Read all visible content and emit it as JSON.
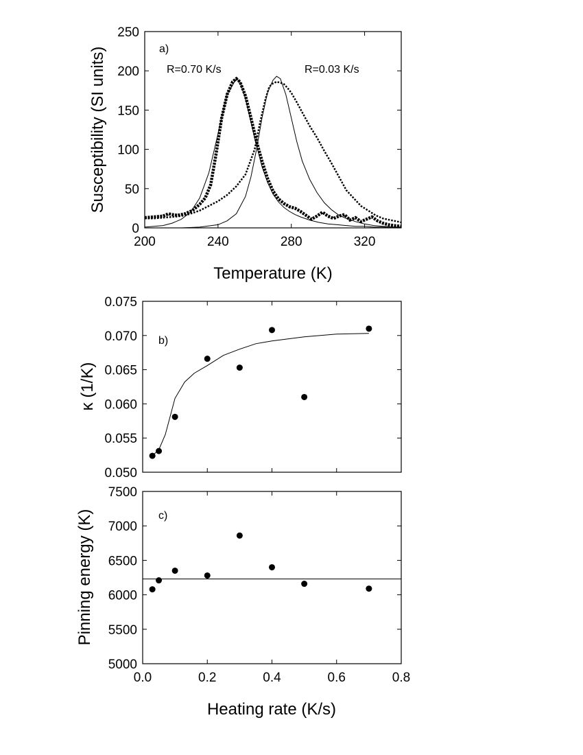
{
  "chart_data": [
    {
      "panel": "a)",
      "type": "scatter",
      "xlabel": "Temperature (K)",
      "ylabel": "Susceptibility (SI units)",
      "xlim": [
        200,
        340
      ],
      "ylim": [
        0,
        250
      ],
      "xticks": [
        200,
        240,
        280,
        320
      ],
      "yticks": [
        0,
        50,
        100,
        150,
        200,
        250
      ],
      "annotations": [
        "R=0.70 K/s",
        "R=0.03 K/s"
      ],
      "series": [
        {
          "name": "R=0.70 K/s",
          "style": "thick-dotted",
          "x": [
            200,
            205,
            210,
            213,
            215,
            218,
            222,
            226,
            230,
            233,
            236,
            239,
            242,
            245,
            248,
            250,
            252,
            255,
            258,
            261,
            264,
            267,
            270,
            273,
            276,
            279,
            282,
            285,
            288,
            291,
            294,
            297,
            300,
            303,
            306,
            309,
            312,
            315,
            318,
            321,
            324,
            327,
            330,
            333,
            336,
            340
          ],
          "y": [
            13,
            14,
            15,
            18,
            17,
            16,
            18,
            22,
            30,
            38,
            55,
            95,
            140,
            170,
            186,
            190,
            186,
            168,
            140,
            110,
            85,
            63,
            47,
            37,
            31,
            27,
            25,
            21,
            16,
            11,
            15,
            20,
            15,
            12,
            15,
            17,
            10,
            13,
            8,
            11,
            14,
            9,
            6,
            4,
            3,
            2
          ]
        },
        {
          "name": "R=0.03 K/s",
          "style": "dotted",
          "x": [
            200,
            205,
            210,
            215,
            220,
            225,
            230,
            235,
            240,
            245,
            250,
            255,
            260,
            263,
            266,
            268,
            270,
            272,
            274,
            276,
            278,
            280,
            283,
            286,
            290,
            294,
            298,
            302,
            306,
            310,
            314,
            318,
            322,
            326,
            330,
            334,
            338,
            340
          ],
          "y": [
            12,
            12,
            13,
            14,
            15,
            18,
            22,
            28,
            34,
            42,
            53,
            68,
            100,
            135,
            165,
            180,
            184,
            186,
            185,
            183,
            178,
            172,
            160,
            147,
            130,
            115,
            98,
            82,
            65,
            48,
            38,
            28,
            22,
            16,
            12,
            10,
            8,
            7
          ]
        },
        {
          "name": "fit R=0.70 K/s",
          "style": "thin-line",
          "x": [
            200,
            205,
            210,
            215,
            220,
            225,
            230,
            235,
            240,
            245,
            250,
            252,
            255,
            258,
            261,
            264,
            267,
            270,
            273,
            276,
            279,
            282,
            285,
            290,
            295,
            300,
            305,
            310,
            315,
            320,
            325,
            330,
            335,
            340
          ],
          "y": [
            1,
            2,
            3,
            6,
            11,
            20,
            38,
            70,
            120,
            170,
            190,
            186,
            165,
            135,
            105,
            78,
            58,
            43,
            33,
            26,
            21,
            17,
            14,
            10,
            7,
            5,
            4,
            3,
            2,
            2,
            1,
            1,
            1,
            1
          ]
        },
        {
          "name": "fit R=0.03 K/s",
          "style": "thin-line",
          "x": [
            220,
            230,
            240,
            245,
            250,
            255,
            258,
            261,
            264,
            267,
            270,
            272,
            274,
            277,
            280,
            283,
            286,
            290,
            294,
            298,
            302,
            306,
            310,
            315,
            320,
            325,
            330,
            335,
            340
          ],
          "y": [
            0,
            1,
            4,
            9,
            18,
            40,
            65,
            100,
            140,
            172,
            188,
            193,
            190,
            170,
            140,
            110,
            85,
            62,
            45,
            32,
            23,
            16,
            12,
            8,
            5,
            3,
            2,
            1,
            1
          ]
        }
      ]
    },
    {
      "panel": "b)",
      "type": "scatter",
      "xlabel": "",
      "ylabel": "κ (1/K)",
      "xlim": [
        0.0,
        0.8
      ],
      "ylim": [
        0.05,
        0.075
      ],
      "yticks": [
        "0.050",
        "0.055",
        "0.060",
        "0.065",
        "0.070",
        "0.075"
      ],
      "points": {
        "x": [
          0.03,
          0.05,
          0.1,
          0.2,
          0.3,
          0.4,
          0.5,
          0.7
        ],
        "y": [
          0.0524,
          0.0531,
          0.0581,
          0.0666,
          0.0653,
          0.0708,
          0.061,
          0.071
        ]
      },
      "fit": {
        "x": [
          0.03,
          0.05,
          0.07,
          0.1,
          0.13,
          0.16,
          0.2,
          0.25,
          0.3,
          0.35,
          0.4,
          0.5,
          0.6,
          0.7
        ],
        "y": [
          0.0524,
          0.0533,
          0.0555,
          0.0608,
          0.0632,
          0.0645,
          0.0656,
          0.0671,
          0.068,
          0.0688,
          0.0692,
          0.0698,
          0.0702,
          0.0703
        ]
      }
    },
    {
      "panel": "c)",
      "type": "scatter",
      "xlabel": "Heating rate (K/s)",
      "ylabel": "Pinning energy (K)",
      "xlim": [
        0.0,
        0.8
      ],
      "ylim": [
        5000,
        7500
      ],
      "xticks": [
        "0.0",
        "0.2",
        "0.4",
        "0.6",
        "0.8"
      ],
      "yticks": [
        "5000",
        "5500",
        "6000",
        "6500",
        "7000",
        "7500"
      ],
      "points": {
        "x": [
          0.03,
          0.05,
          0.1,
          0.2,
          0.3,
          0.4,
          0.5,
          0.7
        ],
        "y": [
          6080,
          6210,
          6350,
          6280,
          6860,
          6400,
          6160,
          6090
        ]
      },
      "fit": {
        "x": [
          0.0,
          0.8
        ],
        "y": [
          6230,
          6230
        ]
      }
    }
  ]
}
